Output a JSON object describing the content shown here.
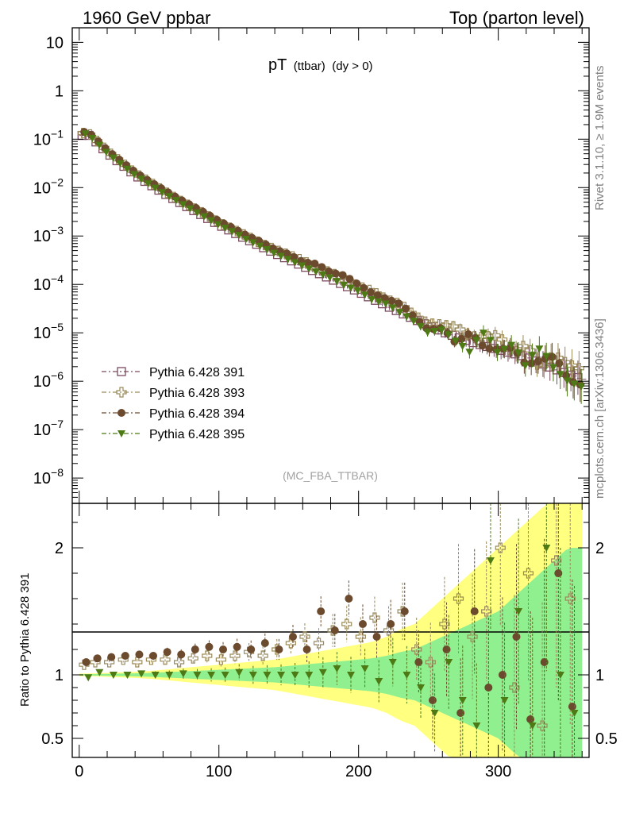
{
  "header": {
    "left": "1960 GeV ppbar",
    "right": "Top (parton level)"
  },
  "plot_title": {
    "main": "pT",
    "sub": "(ttbar)",
    "cond": "(dy > 0)"
  },
  "watermark": "(MC_FBA_TTBAR)",
  "side_label_top": "Rivet 3.1.10, ≥ 1.9M events",
  "side_label_bottom": "mcplots.cern.ch [arXiv:1306.3436]",
  "ratio_ylabel": "Ratio to Pythia 6.428 391",
  "colors": {
    "s391": "#7b4a5e",
    "s393": "#9a8a5a",
    "s394": "#6b4a2e",
    "s395": "#4d7a14",
    "band_inner": "#90f090",
    "band_outer": "#ffff80"
  },
  "chart_data": [
    {
      "type": "scatter",
      "yscale": "log",
      "xlim": [
        -5,
        365
      ],
      "ylim": [
        3e-09,
        20
      ],
      "y_ticks": [
        {
          "v": 10,
          "base": "10",
          "exp": ""
        },
        {
          "v": 1,
          "base": "1",
          "exp": ""
        },
        {
          "v": 0.1,
          "base": "10",
          "exp": "−1"
        },
        {
          "v": 0.01,
          "base": "10",
          "exp": "−2"
        },
        {
          "v": 0.001,
          "base": "10",
          "exp": "−3"
        },
        {
          "v": 0.0001,
          "base": "10",
          "exp": "−4"
        },
        {
          "v": 1e-05,
          "base": "10",
          "exp": "−5"
        },
        {
          "v": 1e-06,
          "base": "10",
          "exp": "−6"
        },
        {
          "v": 1e-07,
          "base": "10",
          "exp": "−7"
        },
        {
          "v": 1e-08,
          "base": "10",
          "exp": "−8"
        }
      ],
      "model": {
        "knots_x": [
          0,
          5,
          10,
          20,
          40,
          60,
          80,
          100,
          120,
          140,
          160,
          180,
          200,
          220,
          240,
          260,
          280,
          300,
          320,
          340,
          360
        ],
        "knots_y": [
          0.11,
          0.135,
          0.1,
          0.052,
          0.018,
          0.0078,
          0.0036,
          0.0017,
          0.00085,
          0.00044,
          0.00024,
          0.00013,
          7e-05,
          3.6e-05,
          1.9e-05,
          1.05e-05,
          6.5e-06,
          4.5e-06,
          3.2e-06,
          1.8e-06,
          1.1e-06
        ]
      },
      "series": [
        {
          "name": "Pythia 6.428 391",
          "marker": "open-square",
          "color": "#7b4a5e",
          "ratio": 1.0
        },
        {
          "name": "Pythia 6.428 393",
          "marker": "open-cross",
          "color": "#9a8a5a",
          "ratio": 1.08
        },
        {
          "name": "Pythia 6.428 394",
          "marker": "filled-circle",
          "color": "#6b4a2e",
          "ratio": 1.15
        },
        {
          "name": "Pythia 6.428 395",
          "marker": "filled-triangle",
          "color": "#4d7a14",
          "ratio": 1.0
        }
      ]
    },
    {
      "type": "scatter",
      "xlim": [
        -5,
        365
      ],
      "ylim": [
        0.35,
        2.35
      ],
      "ylabel": "Ratio to Pythia 6.428 391",
      "y_ticks": [
        {
          "v": 0.5,
          "label": "0.5"
        },
        {
          "v": 1,
          "label": "1"
        },
        {
          "v": 2,
          "label": "2"
        }
      ],
      "x_ticks": [
        {
          "v": 0,
          "label": "0"
        },
        {
          "v": 100,
          "label": "100"
        },
        {
          "v": 200,
          "label": "200"
        },
        {
          "v": 300,
          "label": "300"
        }
      ],
      "ratio_samples": {
        "x": [
          2,
          10,
          20,
          30,
          40,
          50,
          60,
          70,
          80,
          90,
          100,
          110,
          120,
          130,
          140,
          150,
          160,
          170,
          180,
          190,
          200,
          210,
          220,
          230,
          240,
          250,
          260,
          270,
          280,
          290,
          300,
          310,
          320,
          330,
          340,
          350
        ],
        "s393": [
          1.08,
          1.1,
          1.1,
          1.12,
          1.1,
          1.12,
          1.12,
          1.1,
          1.13,
          1.15,
          1.12,
          1.15,
          1.18,
          1.15,
          1.2,
          1.25,
          1.3,
          1.25,
          1.35,
          1.4,
          1.3,
          1.45,
          1.35,
          1.5,
          1.2,
          1.1,
          1.4,
          1.6,
          1.3,
          1.5,
          2.0,
          0.9,
          1.8,
          0.6,
          1.9,
          1.6
        ],
        "s394": [
          1.1,
          1.13,
          1.14,
          1.15,
          1.16,
          1.15,
          1.18,
          1.16,
          1.2,
          1.22,
          1.2,
          1.22,
          1.2,
          1.25,
          1.2,
          1.3,
          1.2,
          1.5,
          1.35,
          1.6,
          1.4,
          1.3,
          1.4,
          1.5,
          1.1,
          0.8,
          1.2,
          0.7,
          1.5,
          0.9,
          1.0,
          1.3,
          0.65,
          1.1,
          1.8,
          0.75
        ],
        "s395": [
          0.98,
          1.02,
          1.0,
          1.0,
          1.01,
          1.0,
          1.0,
          1.01,
          1.0,
          1.0,
          1.0,
          1.02,
          1.0,
          1.0,
          1.0,
          1.0,
          1.0,
          1.02,
          1.05,
          1.0,
          1.05,
          0.95,
          1.1,
          1.0,
          0.9,
          0.7,
          1.1,
          0.8,
          0.6,
          1.9,
          0.8,
          1.5,
          0.6,
          2.0,
          1.0,
          0.7
        ],
        "band_inner": [
          0.005,
          0.006,
          0.008,
          0.01,
          0.012,
          0.015,
          0.02,
          0.025,
          0.03,
          0.035,
          0.04,
          0.045,
          0.05,
          0.055,
          0.06,
          0.07,
          0.08,
          0.09,
          0.1,
          0.11,
          0.12,
          0.13,
          0.15,
          0.18,
          0.2,
          0.25,
          0.3,
          0.35,
          0.4,
          0.45,
          0.5,
          0.6,
          0.7,
          0.8,
          0.9,
          1.0
        ],
        "band_outer": [
          0.01,
          0.012,
          0.016,
          0.02,
          0.024,
          0.03,
          0.04,
          0.05,
          0.06,
          0.07,
          0.08,
          0.09,
          0.1,
          0.11,
          0.12,
          0.14,
          0.16,
          0.18,
          0.2,
          0.22,
          0.24,
          0.26,
          0.3,
          0.36,
          0.4,
          0.5,
          0.6,
          0.7,
          0.8,
          0.9,
          1.0,
          1.1,
          1.2,
          1.3,
          1.4,
          1.5
        ]
      }
    }
  ]
}
